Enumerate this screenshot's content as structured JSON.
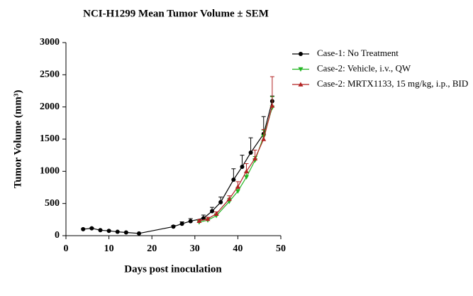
{
  "chart_data": {
    "type": "line",
    "title": "NCI-H1299 Mean Tumor Volume ± SEM",
    "x_label": "Days post inoculation",
    "y_label": "Tumor Volume (mm³)",
    "xlim": [
      0,
      50
    ],
    "xticks": [
      0,
      10,
      20,
      30,
      40,
      50
    ],
    "ylim": [
      0,
      3000
    ],
    "yticks": [
      0,
      500,
      1000,
      1500,
      2000,
      2500,
      3000
    ],
    "legend": "upper right",
    "series": [
      {
        "name": "Case-1: No Treatment",
        "color": "#000000",
        "marker": "circle",
        "x": [
          4,
          6,
          8,
          10,
          12,
          14,
          17,
          25,
          27,
          29,
          32,
          34,
          36,
          39,
          41,
          43,
          46,
          48
        ],
        "values": [
          100,
          115,
          85,
          75,
          60,
          50,
          35,
          140,
          185,
          225,
          270,
          380,
          520,
          870,
          1070,
          1290,
          1580,
          2090
        ],
        "errors": [
          10,
          10,
          8,
          8,
          6,
          5,
          4,
          20,
          30,
          40,
          50,
          60,
          80,
          170,
          180,
          230,
          270,
          80
        ]
      },
      {
        "name": "Case-2: Vehicle, i.v., QW",
        "color": "#22b522",
        "marker": "triangle-down",
        "x": [
          31,
          33,
          35,
          38,
          40,
          42,
          44,
          46,
          48
        ],
        "values": [
          210,
          240,
          310,
          530,
          690,
          910,
          1170,
          1540,
          1990
        ],
        "errors": [
          20,
          25,
          30,
          50,
          60,
          80,
          60,
          100,
          170
        ]
      },
      {
        "name": "Case-2: MRTX1133, 15 mg/kg, i.p., BID",
        "color": "#b22222",
        "marker": "triangle-up",
        "x": [
          31,
          33,
          35,
          38,
          40,
          42,
          44,
          46,
          48
        ],
        "values": [
          230,
          260,
          340,
          570,
          760,
          1000,
          1200,
          1500,
          2020
        ],
        "errors": [
          20,
          25,
          30,
          50,
          80,
          120,
          130,
          150,
          450
        ]
      }
    ]
  }
}
